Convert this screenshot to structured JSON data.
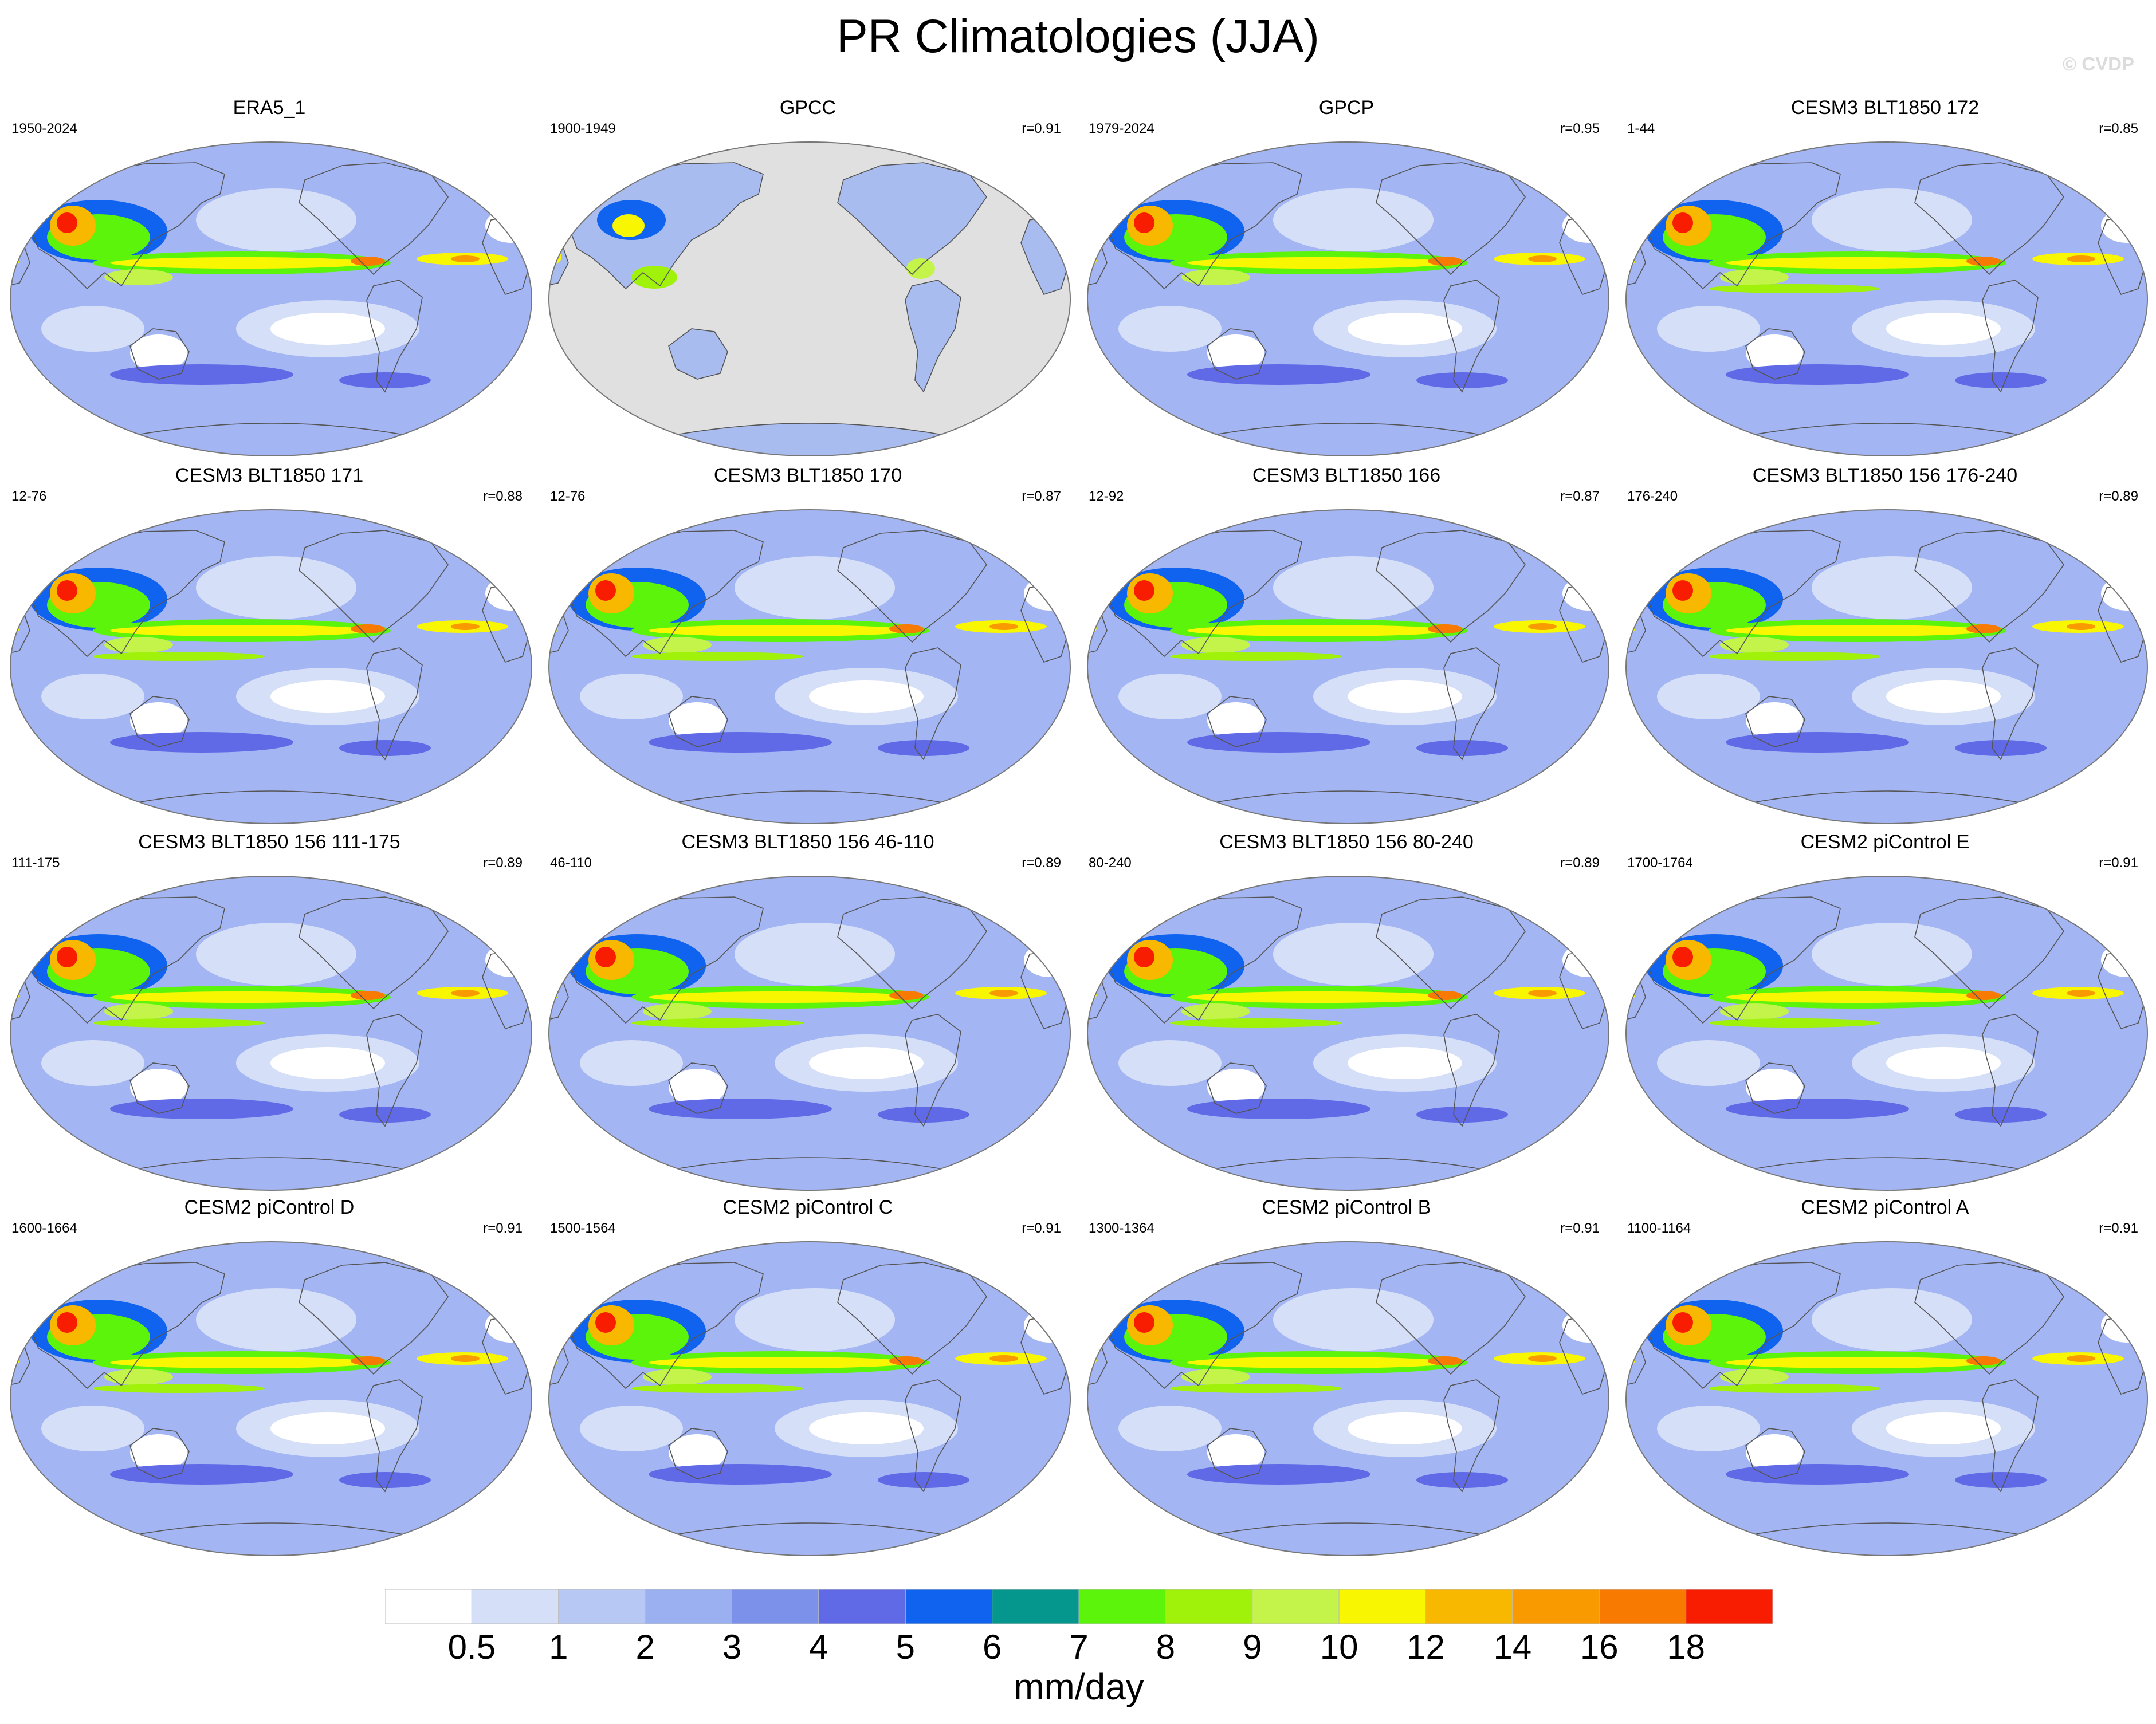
{
  "title": "PR Climatologies (JJA)",
  "watermark": "© CVDP",
  "panels": [
    {
      "title": "ERA5_1",
      "years": "1950-2024",
      "r": "",
      "kind": "reanalysis"
    },
    {
      "title": "GPCC",
      "years": "1900-1949",
      "r": "r=0.91",
      "kind": "land-only"
    },
    {
      "title": "GPCP",
      "years": "1979-2024",
      "r": "r=0.95",
      "kind": "obs"
    },
    {
      "title": "CESM3 BLT1850 172",
      "years": "1-44",
      "r": "r=0.85",
      "kind": "model"
    },
    {
      "title": "CESM3 BLT1850 171",
      "years": "12-76",
      "r": "r=0.88",
      "kind": "model"
    },
    {
      "title": "CESM3 BLT1850 170",
      "years": "12-76",
      "r": "r=0.87",
      "kind": "model"
    },
    {
      "title": "CESM3 BLT1850 166",
      "years": "12-92",
      "r": "r=0.87",
      "kind": "model"
    },
    {
      "title": "CESM3 BLT1850 156 176-240",
      "years": "176-240",
      "r": "r=0.89",
      "kind": "model"
    },
    {
      "title": "CESM3 BLT1850 156 111-175",
      "years": "111-175",
      "r": "r=0.89",
      "kind": "model"
    },
    {
      "title": "CESM3 BLT1850 156 46-110",
      "years": "46-110",
      "r": "r=0.89",
      "kind": "model"
    },
    {
      "title": "CESM3 BLT1850 156 80-240",
      "years": "80-240",
      "r": "r=0.89",
      "kind": "model"
    },
    {
      "title": "CESM2 piControl E",
      "years": "1700-1764",
      "r": "r=0.91",
      "kind": "model"
    },
    {
      "title": "CESM2 piControl D",
      "years": "1600-1664",
      "r": "r=0.91",
      "kind": "model"
    },
    {
      "title": "CESM2 piControl C",
      "years": "1500-1564",
      "r": "r=0.91",
      "kind": "model"
    },
    {
      "title": "CESM2 piControl B",
      "years": "1300-1364",
      "r": "r=0.91",
      "kind": "model"
    },
    {
      "title": "CESM2 piControl A",
      "years": "1100-1164",
      "r": "r=0.91",
      "kind": "model"
    }
  ],
  "colorbar": {
    "units": "mm/day",
    "labels": [
      "0.5",
      "1",
      "2",
      "3",
      "4",
      "5",
      "6",
      "7",
      "8",
      "9",
      "10",
      "12",
      "14",
      "16",
      "18"
    ],
    "colors": [
      "#ffffff",
      "#d6dff8",
      "#b8c8f4",
      "#9ab0f0",
      "#7c91ea",
      "#6069e6",
      "#0f63ee",
      "#05968e",
      "#5cf40a",
      "#a0f20a",
      "#c4f44a",
      "#f8f600",
      "#f8b800",
      "#f89a00",
      "#f87a00",
      "#f81c00"
    ]
  },
  "map_style": {
    "ocean_base": "#a3b5f2",
    "land_missing": "#e0e0e0",
    "coastline": "#555555"
  }
}
